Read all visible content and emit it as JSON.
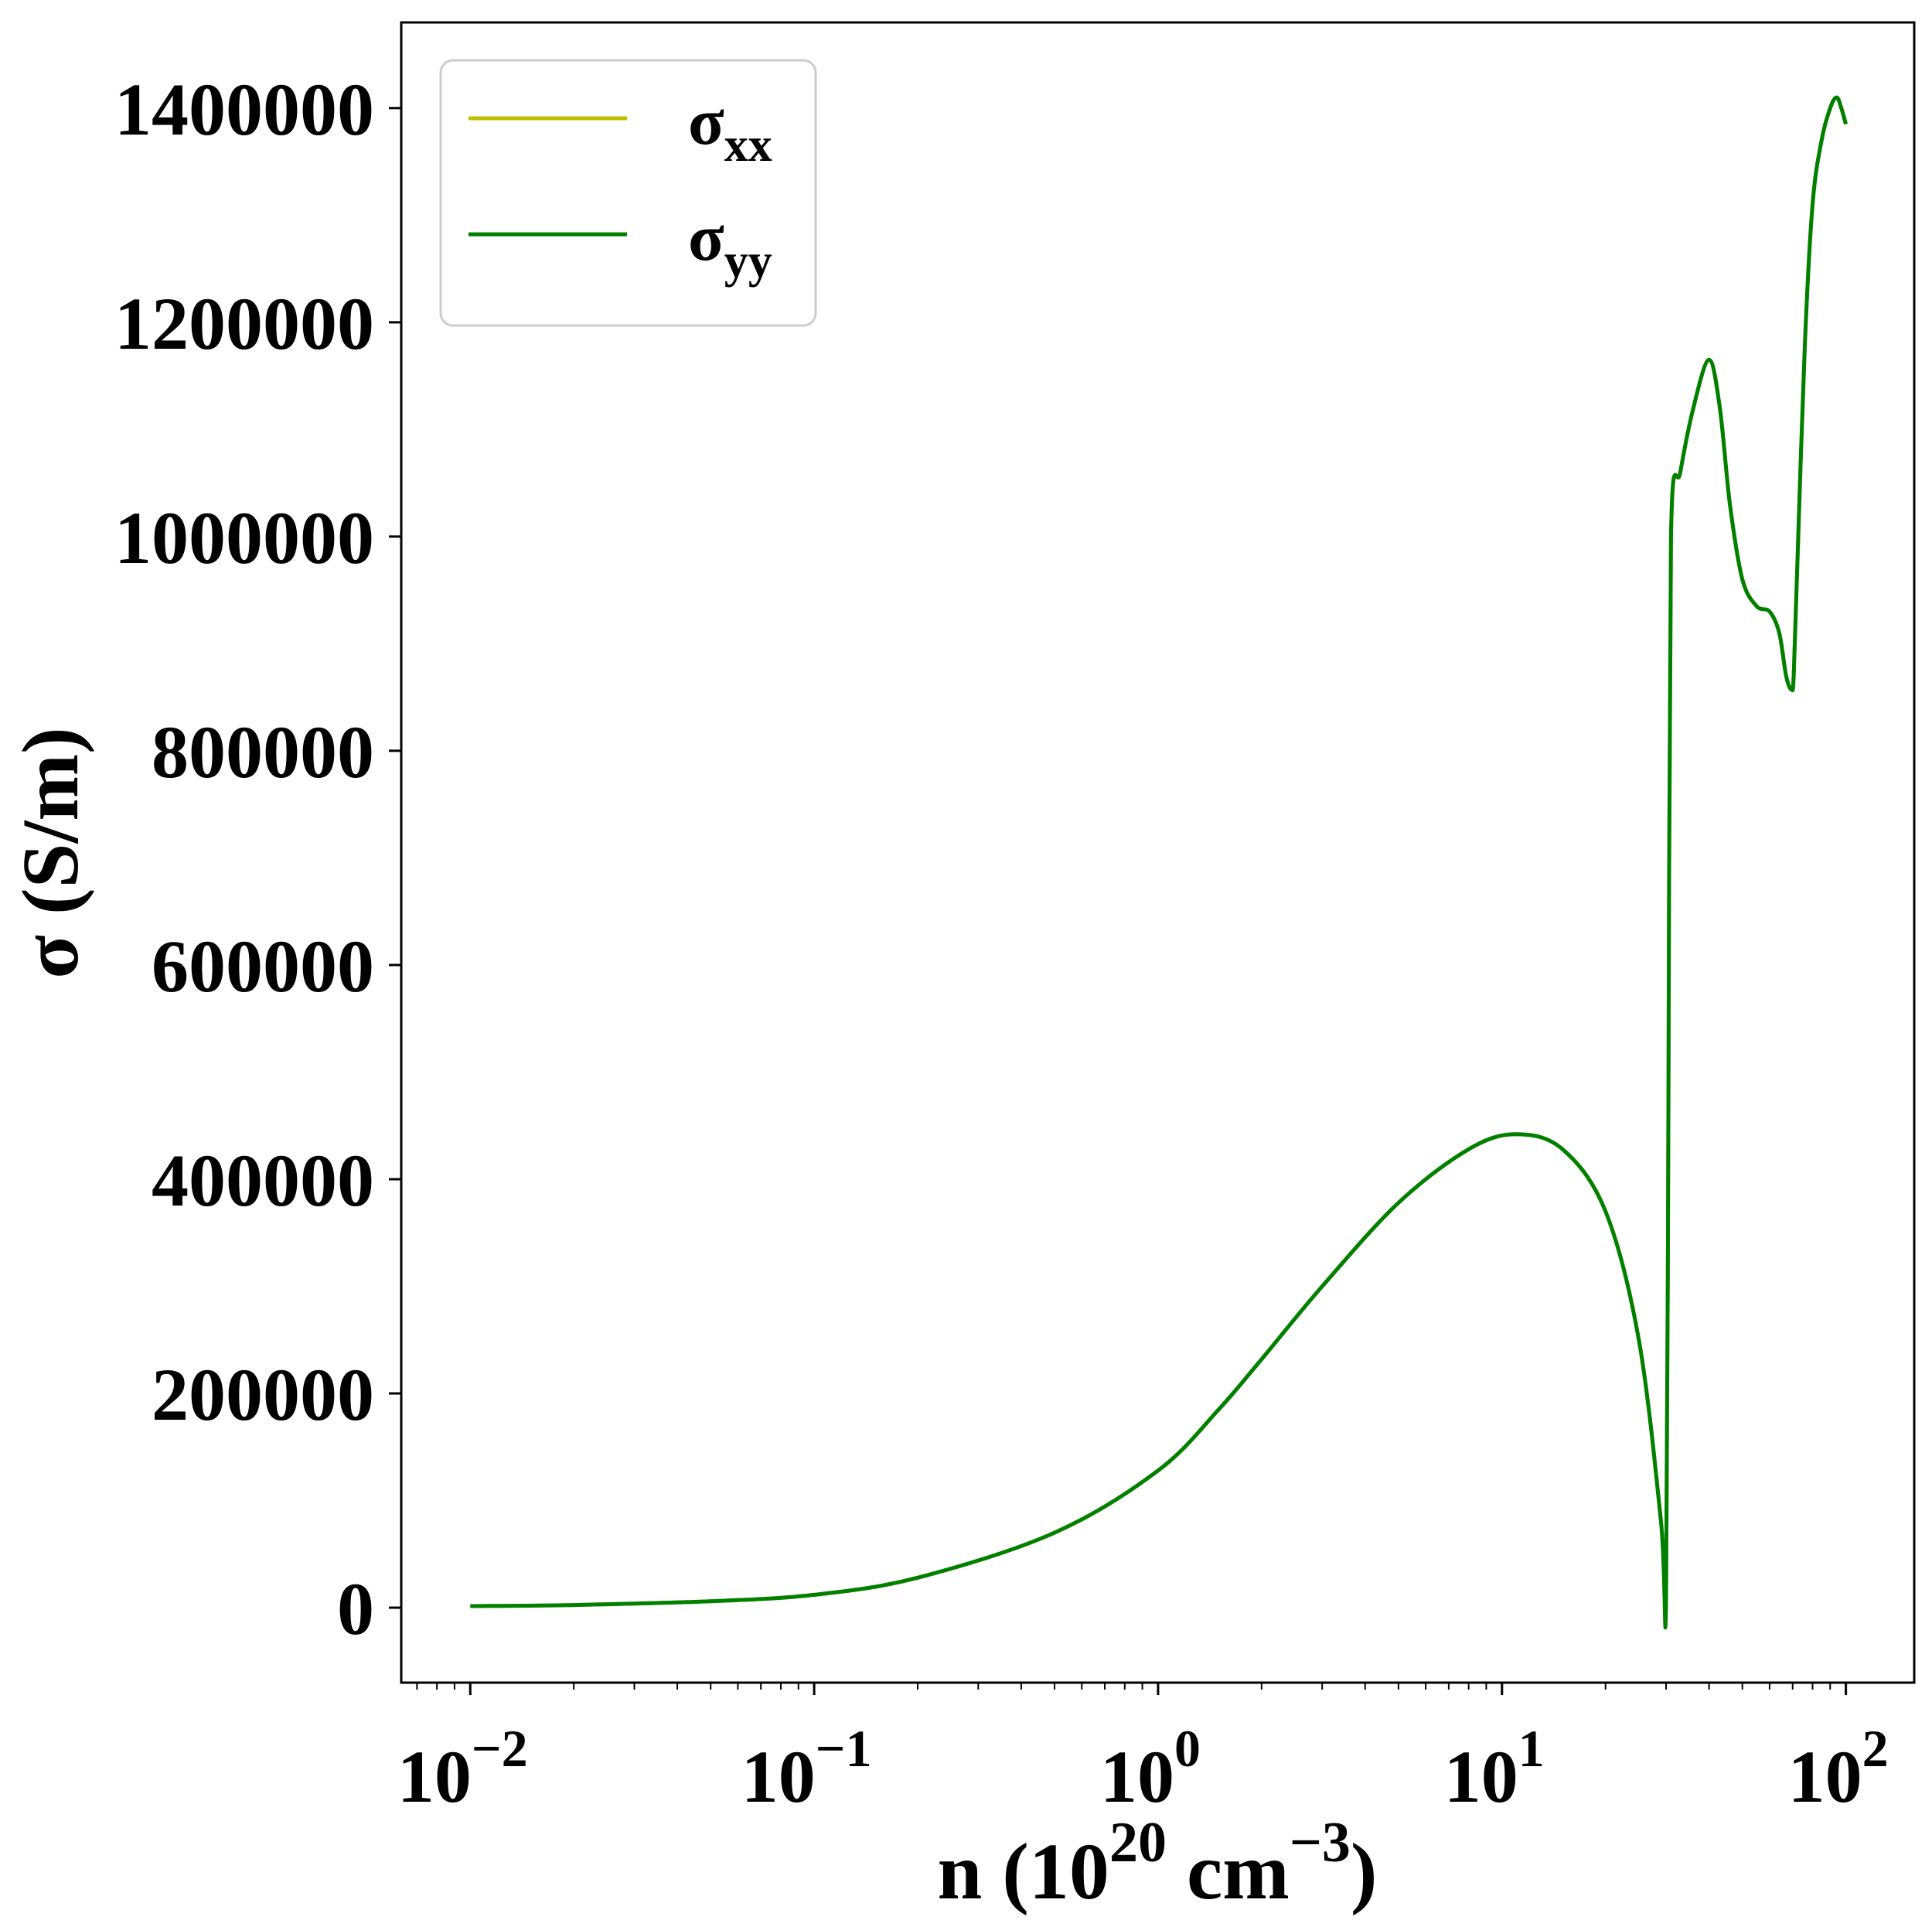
{
  "chart_data": {
    "type": "line",
    "xscale": "log",
    "xlim": [
      0.0063,
      158
    ],
    "ylim": [
      -70000,
      1480000
    ],
    "grid": false,
    "legend_position": "top-left",
    "xlabel": {
      "base": "n (10",
      "exp": "20",
      "mid": " cm",
      "exp2": "−3",
      "end": ")"
    },
    "ylabel": "σ (S/m)",
    "x_ticks": [
      {
        "value": 0.01,
        "base": "10",
        "exp": "−2"
      },
      {
        "value": 0.1,
        "base": "10",
        "exp": "−1"
      },
      {
        "value": 1,
        "base": "10",
        "exp": "0"
      },
      {
        "value": 10,
        "base": "10",
        "exp": "1"
      },
      {
        "value": 100,
        "base": "10",
        "exp": "2"
      }
    ],
    "y_ticks": [
      {
        "value": 0,
        "label": "0"
      },
      {
        "value": 200000,
        "label": "200000"
      },
      {
        "value": 400000,
        "label": "400000"
      },
      {
        "value": 600000,
        "label": "600000"
      },
      {
        "value": 800000,
        "label": "800000"
      },
      {
        "value": 1000000,
        "label": "1000000"
      },
      {
        "value": 1200000,
        "label": "1200000"
      },
      {
        "value": 1400000,
        "label": "1400000"
      }
    ],
    "series": [
      {
        "name": "σ",
        "subscript": "xx",
        "color": "#bfbf00",
        "x": [
          0.01,
          0.02,
          0.05,
          0.1,
          0.2,
          0.5,
          1,
          1.5,
          2,
          3,
          5,
          8,
          11,
          15,
          20,
          25,
          29,
          30,
          30.5,
          31,
          33,
          36,
          40,
          43,
          46,
          50,
          55,
          60,
          64,
          67,
          69.5,
          70.5,
          72,
          76,
          80,
          85,
          90,
          94,
          97,
          100
        ],
        "y": [
          1500,
          2500,
          6000,
          12000,
          28000,
          70000,
          128000,
          185000,
          232000,
          300000,
          378000,
          428000,
          442000,
          428000,
          370000,
          250000,
          80000,
          5000,
          500000,
          1000000,
          1060000,
          1120000,
          1165000,
          1120000,
          1030000,
          960000,
          935000,
          930000,
          910000,
          870000,
          857000,
          870000,
          960000,
          1180000,
          1310000,
          1370000,
          1400000,
          1410000,
          1400000,
          1385000
        ]
      },
      {
        "name": "σ",
        "subscript": "yy",
        "color": "#008000",
        "x": [
          0.01,
          0.02,
          0.05,
          0.1,
          0.2,
          0.5,
          1,
          1.5,
          2,
          3,
          5,
          8,
          11,
          15,
          20,
          25,
          29,
          30,
          30.5,
          31,
          33,
          36,
          40,
          43,
          46,
          50,
          55,
          60,
          64,
          67,
          69.5,
          70.5,
          72,
          76,
          80,
          85,
          90,
          94,
          97,
          100
        ],
        "y": [
          1500,
          2500,
          6000,
          12000,
          28000,
          70000,
          128000,
          185000,
          232000,
          300000,
          378000,
          428000,
          442000,
          428000,
          370000,
          250000,
          80000,
          5000,
          500000,
          1000000,
          1060000,
          1120000,
          1165000,
          1120000,
          1030000,
          960000,
          935000,
          930000,
          910000,
          870000,
          857000,
          870000,
          960000,
          1180000,
          1310000,
          1370000,
          1400000,
          1410000,
          1400000,
          1385000
        ]
      }
    ]
  }
}
